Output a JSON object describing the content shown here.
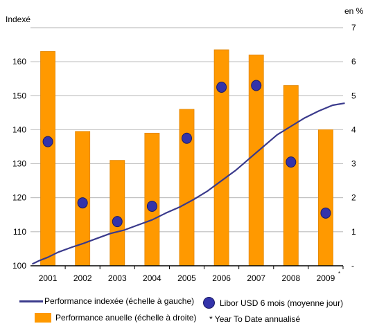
{
  "chart_data": {
    "type": "bar",
    "categories": [
      "2001",
      "2002",
      "2003",
      "2004",
      "2005",
      "2006",
      "2007",
      "2008",
      "2009"
    ],
    "category_note": "*",
    "left_axis": {
      "label": "Indexé",
      "ticks": [
        100,
        110,
        120,
        130,
        140,
        150,
        160
      ],
      "range": [
        100,
        170
      ]
    },
    "right_axis": {
      "label": "en %",
      "ticks": [
        "-",
        "1",
        "2",
        "3",
        "4",
        "5",
        "6",
        "7"
      ],
      "range": [
        0,
        7
      ]
    },
    "series": [
      {
        "name": "Performance anuelle (échelle à droite)",
        "type": "bar",
        "axis": "right",
        "values": [
          6.3,
          3.95,
          3.1,
          3.9,
          4.6,
          6.35,
          6.2,
          5.3,
          4.0
        ],
        "color": "#ff9900"
      },
      {
        "name": "Libor USD 6 mois (moyenne jour)",
        "type": "scatter",
        "axis": "right",
        "values": [
          3.65,
          1.85,
          1.3,
          1.75,
          3.75,
          5.25,
          5.3,
          3.05,
          1.55
        ],
        "color": "#3333aa"
      },
      {
        "name": "Performance indexée (échelle à gauche)",
        "type": "line",
        "axis": "left",
        "x": [
          2000.55,
          2000.75,
          2001.0,
          2001.3,
          2001.7,
          2002.0,
          2002.4,
          2002.8,
          2003.2,
          2003.6,
          2004.0,
          2004.4,
          2004.8,
          2005.2,
          2005.6,
          2006.0,
          2006.4,
          2006.8,
          2007.2,
          2007.6,
          2008.0,
          2008.4,
          2008.8,
          2009.2,
          2009.55
        ],
        "y": [
          100.5,
          101.5,
          102.5,
          104,
          105.5,
          106.5,
          108,
          109.5,
          110.5,
          112,
          113.5,
          115.5,
          117.3,
          119.5,
          122,
          125,
          128,
          131.5,
          135,
          138.5,
          141,
          143.5,
          145.5,
          147.2,
          147.8
        ],
        "color": "#3a3a8c"
      }
    ],
    "footnote": "* Year To Date annualisé",
    "grid": true
  }
}
